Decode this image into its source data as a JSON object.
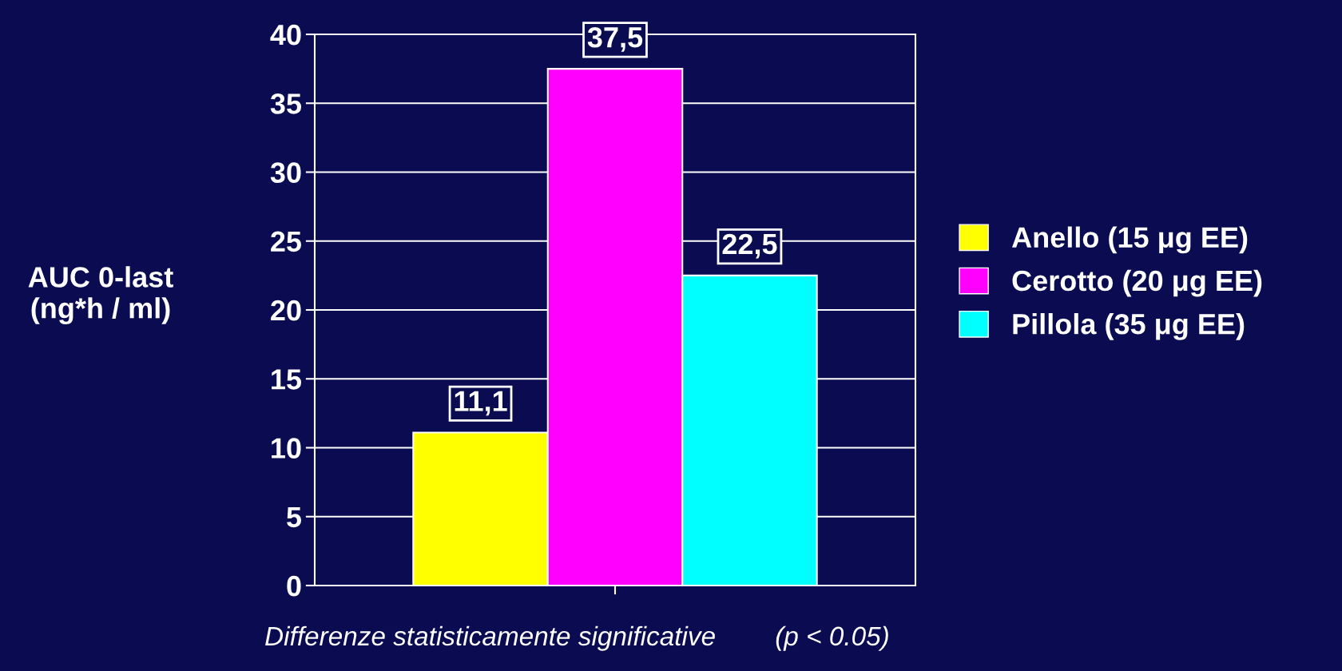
{
  "chart_data": {
    "type": "bar",
    "ylabel": "AUC 0-last\n(ng*h / ml)",
    "categories": [
      null
    ],
    "series": [
      {
        "name": "Anello (15 μg EE)",
        "color": "#ffff00",
        "values": [
          11.1
        ],
        "value_labels": [
          "11,1"
        ]
      },
      {
        "name": "Cerotto (20 μg EE)",
        "color": "#ff00ff",
        "values": [
          37.5
        ],
        "value_labels": [
          "37,5"
        ]
      },
      {
        "name": "Pillola (35 μg EE)",
        "color": "#00ffff",
        "values": [
          22.5
        ],
        "value_labels": [
          "22,5"
        ]
      }
    ],
    "ylim": [
      0,
      40
    ],
    "yticks": [
      0,
      5,
      10,
      15,
      20,
      25,
      30,
      35,
      40
    ],
    "grid": "y",
    "legend": "right",
    "annotations": [
      "Differenze statisticamente significative        (p < 0.05)"
    ]
  }
}
